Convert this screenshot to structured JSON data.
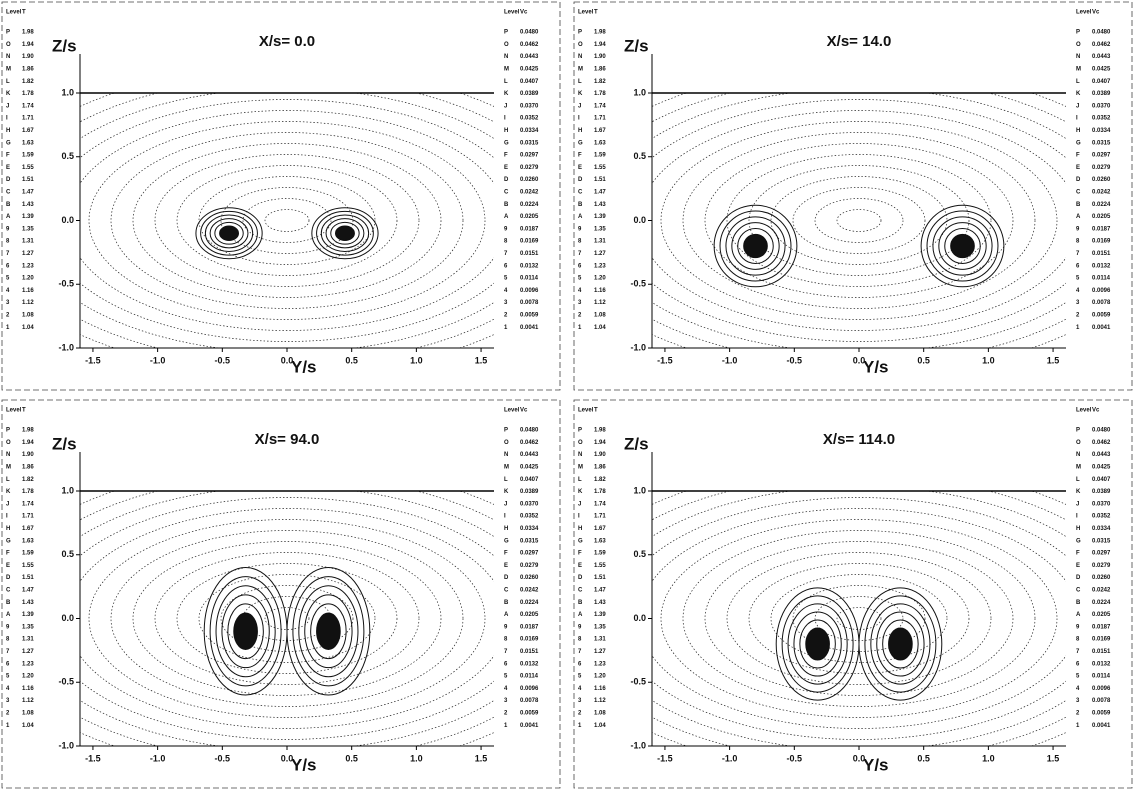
{
  "chart_data": [
    {
      "type": "contour",
      "title": "X/s= 0.0",
      "x_label": "Y/s",
      "y_label": "Z/s",
      "xlim": [
        -1.6,
        1.6
      ],
      "ylim": [
        -1.0,
        1.0
      ],
      "xticks": [
        -1.5,
        {
          "value": -1.0,
          "label": "-1.0"
        },
        -0.5,
        {
          "value": 0,
          "label": "0.0"
        },
        0.5,
        {
          "value": 1.0,
          "label": "1.0"
        },
        1.5
      ],
      "yticks": [
        {
          "value": -1.0,
          "label": "-1.0"
        },
        -0.5,
        {
          "value": 0,
          "label": "0.0"
        },
        0.5,
        {
          "value": 1.0,
          "label": "1.0"
        }
      ],
      "legend_left": {
        "header": [
          "Level",
          "T"
        ],
        "levels": [
          "P",
          "O",
          "N",
          "M",
          "L",
          "K",
          "J",
          "I",
          "H",
          "G",
          "F",
          "E",
          "D",
          "C",
          "B",
          "A",
          "9",
          "8",
          "7",
          "6",
          "5",
          "4",
          "3",
          "2",
          "1"
        ],
        "values": [
          "1.98",
          "1.94",
          "1.90",
          "1.86",
          "1.82",
          "1.78",
          "1.74",
          "1.71",
          "1.67",
          "1.63",
          "1.59",
          "1.55",
          "1.51",
          "1.47",
          "1.43",
          "1.39",
          "1.35",
          "1.31",
          "1.27",
          "1.23",
          "1.20",
          "1.16",
          "1.12",
          "1.08",
          "1.04"
        ]
      },
      "legend_right": {
        "header": [
          "Level",
          "Vc"
        ],
        "levels": [
          "P",
          "O",
          "N",
          "M",
          "L",
          "K",
          "J",
          "I",
          "H",
          "G",
          "F",
          "E",
          "D",
          "C",
          "B",
          "A",
          "9",
          "8",
          "7",
          "6",
          "5",
          "4",
          "3",
          "2",
          "1"
        ],
        "values": [
          "0.0480",
          "0.0462",
          "0.0443",
          "0.0425",
          "0.0407",
          "0.0389",
          "0.0370",
          "0.0352",
          "0.0334",
          "0.0315",
          "0.0297",
          "0.0279",
          "0.0260",
          "0.0242",
          "0.0224",
          "0.0205",
          "0.0187",
          "0.0169",
          "0.0151",
          "0.0132",
          "0.0114",
          "0.0096",
          "0.0078",
          "0.0059",
          "0.0041"
        ]
      }
    },
    {
      "type": "contour",
      "title": "X/s= 14.0",
      "x_label": "Y/s",
      "y_label": "Z/s",
      "xlim": [
        -1.6,
        1.6
      ],
      "ylim": [
        -1.0,
        1.0
      ],
      "xticks": [
        -1.5,
        {
          "value": -1.0,
          "label": "-1.0"
        },
        -0.5,
        {
          "value": 0,
          "label": "0.0"
        },
        0.5,
        {
          "value": 1.0,
          "label": "1.0"
        },
        1.5
      ],
      "yticks": [
        {
          "value": -1.0,
          "label": "-1.0"
        },
        -0.5,
        {
          "value": 0,
          "label": "0.0"
        },
        0.5,
        {
          "value": 1.0,
          "label": "1.0"
        }
      ],
      "legend_left": {
        "header": [
          "Level",
          "T"
        ],
        "levels": [
          "P",
          "O",
          "N",
          "M",
          "L",
          "K",
          "J",
          "I",
          "H",
          "G",
          "F",
          "E",
          "D",
          "C",
          "B",
          "A",
          "9",
          "8",
          "7",
          "6",
          "5",
          "4",
          "3",
          "2",
          "1"
        ],
        "values": [
          "1.98",
          "1.94",
          "1.90",
          "1.86",
          "1.82",
          "1.78",
          "1.74",
          "1.71",
          "1.67",
          "1.63",
          "1.59",
          "1.55",
          "1.51",
          "1.47",
          "1.43",
          "1.39",
          "1.35",
          "1.31",
          "1.27",
          "1.23",
          "1.20",
          "1.16",
          "1.12",
          "1.08",
          "1.04"
        ]
      },
      "legend_right": {
        "header": [
          "Level",
          "Vc"
        ],
        "levels": [
          "P",
          "O",
          "N",
          "M",
          "L",
          "K",
          "J",
          "I",
          "H",
          "G",
          "F",
          "E",
          "D",
          "C",
          "B",
          "A",
          "9",
          "8",
          "7",
          "6",
          "5",
          "4",
          "3",
          "2",
          "1"
        ],
        "values": [
          "0.0480",
          "0.0462",
          "0.0443",
          "0.0425",
          "0.0407",
          "0.0389",
          "0.0370",
          "0.0352",
          "0.0334",
          "0.0315",
          "0.0297",
          "0.0279",
          "0.0260",
          "0.0242",
          "0.0224",
          "0.0205",
          "0.0187",
          "0.0169",
          "0.0151",
          "0.0132",
          "0.0114",
          "0.0096",
          "0.0078",
          "0.0059",
          "0.0041"
        ]
      }
    },
    {
      "type": "contour",
      "title": "X/s= 94.0",
      "x_label": "Y/s",
      "y_label": "Z/s",
      "xlim": [
        -1.6,
        1.6
      ],
      "ylim": [
        -1.0,
        1.0
      ],
      "xticks": [
        -1.5,
        {
          "value": -1.0,
          "label": "-1.0"
        },
        -0.5,
        {
          "value": 0,
          "label": "0.0"
        },
        0.5,
        {
          "value": 1.0,
          "label": "1.0"
        },
        1.5
      ],
      "yticks": [
        {
          "value": -1.0,
          "label": "-1.0"
        },
        -0.5,
        {
          "value": 0,
          "label": "0.0"
        },
        0.5,
        {
          "value": 1.0,
          "label": "1.0"
        }
      ],
      "legend_left": {
        "header": [
          "Level",
          "T"
        ],
        "levels": [
          "P",
          "O",
          "N",
          "M",
          "L",
          "K",
          "J",
          "I",
          "H",
          "G",
          "F",
          "E",
          "D",
          "C",
          "B",
          "A",
          "9",
          "8",
          "7",
          "6",
          "5",
          "4",
          "3",
          "2",
          "1"
        ],
        "values": [
          "1.98",
          "1.94",
          "1.90",
          "1.86",
          "1.82",
          "1.78",
          "1.74",
          "1.71",
          "1.67",
          "1.63",
          "1.59",
          "1.55",
          "1.51",
          "1.47",
          "1.43",
          "1.39",
          "1.35",
          "1.31",
          "1.27",
          "1.23",
          "1.20",
          "1.16",
          "1.12",
          "1.08",
          "1.04"
        ]
      },
      "legend_right": {
        "header": [
          "Level",
          "Vc"
        ],
        "levels": [
          "P",
          "O",
          "N",
          "M",
          "L",
          "K",
          "J",
          "I",
          "H",
          "G",
          "F",
          "E",
          "D",
          "C",
          "B",
          "A",
          "9",
          "8",
          "7",
          "6",
          "5",
          "4",
          "3",
          "2",
          "1"
        ],
        "values": [
          "0.0480",
          "0.0462",
          "0.0443",
          "0.0425",
          "0.0407",
          "0.0389",
          "0.0370",
          "0.0352",
          "0.0334",
          "0.0315",
          "0.0297",
          "0.0279",
          "0.0260",
          "0.0242",
          "0.0224",
          "0.0205",
          "0.0187",
          "0.0169",
          "0.0151",
          "0.0132",
          "0.0114",
          "0.0096",
          "0.0078",
          "0.0059",
          "0.0041"
        ]
      }
    },
    {
      "type": "contour",
      "title": "X/s= 114.0",
      "x_label": "Y/s",
      "y_label": "Z/s",
      "xlim": [
        -1.6,
        1.6
      ],
      "ylim": [
        -1.0,
        1.0
      ],
      "xticks": [
        -1.5,
        {
          "value": -1.0,
          "label": "-1.0"
        },
        -0.5,
        {
          "value": 0,
          "label": "0.0"
        },
        0.5,
        {
          "value": 1.0,
          "label": "1.0"
        },
        1.5
      ],
      "yticks": [
        {
          "value": -1.0,
          "label": "-1.0"
        },
        -0.5,
        {
          "value": 0,
          "label": "0.0"
        },
        0.5,
        {
          "value": 1.0,
          "label": "1.0"
        }
      ],
      "legend_left": {
        "header": [
          "Level",
          "T"
        ],
        "levels": [
          "P",
          "O",
          "N",
          "M",
          "L",
          "K",
          "J",
          "I",
          "H",
          "G",
          "F",
          "E",
          "D",
          "C",
          "B",
          "A",
          "9",
          "8",
          "7",
          "6",
          "5",
          "4",
          "3",
          "2",
          "1"
        ],
        "values": [
          "1.98",
          "1.94",
          "1.90",
          "1.86",
          "1.82",
          "1.78",
          "1.74",
          "1.71",
          "1.67",
          "1.63",
          "1.59",
          "1.55",
          "1.51",
          "1.47",
          "1.43",
          "1.39",
          "1.35",
          "1.31",
          "1.27",
          "1.23",
          "1.20",
          "1.16",
          "1.12",
          "1.08",
          "1.04"
        ]
      },
      "legend_right": {
        "header": [
          "Level",
          "Vc"
        ],
        "levels": [
          "P",
          "O",
          "N",
          "M",
          "L",
          "K",
          "J",
          "I",
          "H",
          "G",
          "F",
          "E",
          "D",
          "C",
          "B",
          "A",
          "9",
          "8",
          "7",
          "6",
          "5",
          "4",
          "3",
          "2",
          "1"
        ],
        "values": [
          "0.0480",
          "0.0462",
          "0.0443",
          "0.0425",
          "0.0407",
          "0.0389",
          "0.0370",
          "0.0352",
          "0.0334",
          "0.0315",
          "0.0297",
          "0.0279",
          "0.0260",
          "0.0242",
          "0.0224",
          "0.0205",
          "0.0187",
          "0.0169",
          "0.0151",
          "0.0132",
          "0.0114",
          "0.0096",
          "0.0078",
          "0.0059",
          "0.0041"
        ]
      }
    }
  ]
}
